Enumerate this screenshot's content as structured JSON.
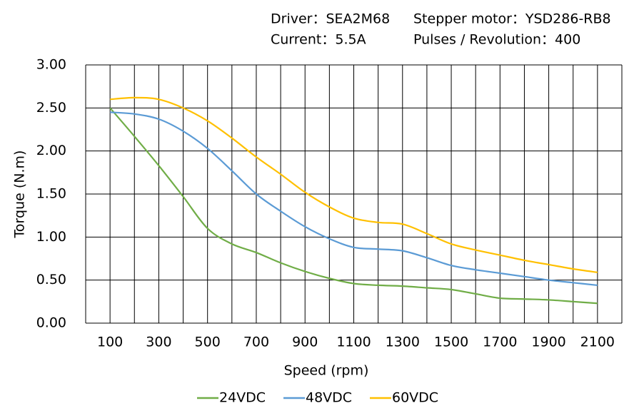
{
  "chart_data": {
    "type": "line",
    "annotations": [
      "Driver：SEA2M68",
      "Stepper motor：YSD286-RB8",
      "Current：5.5A",
      "Pulses / Revolution：400"
    ],
    "x_label": "Speed  (rpm)",
    "y_label": "Torque (N.m)",
    "x": [
      100,
      200,
      300,
      400,
      500,
      600,
      700,
      800,
      900,
      1000,
      1100,
      1200,
      1300,
      1400,
      1500,
      1600,
      1700,
      1800,
      1900,
      2000,
      2100
    ],
    "series": [
      {
        "name": "24VDC",
        "color": "#70ad47",
        "values": [
          2.5,
          2.17,
          1.83,
          1.47,
          1.1,
          0.92,
          0.82,
          0.7,
          0.6,
          0.52,
          0.46,
          0.44,
          0.43,
          0.41,
          0.39,
          0.34,
          0.29,
          0.28,
          0.27,
          0.25,
          0.23
        ]
      },
      {
        "name": "48VDC",
        "color": "#5b9bd5",
        "values": [
          2.45,
          2.43,
          2.37,
          2.23,
          2.03,
          1.77,
          1.5,
          1.3,
          1.12,
          0.98,
          0.88,
          0.86,
          0.84,
          0.76,
          0.67,
          0.62,
          0.58,
          0.54,
          0.5,
          0.47,
          0.44
        ]
      },
      {
        "name": "60VDC",
        "color": "#ffc000",
        "values": [
          2.6,
          2.62,
          2.6,
          2.5,
          2.35,
          2.15,
          1.93,
          1.73,
          1.52,
          1.35,
          1.22,
          1.17,
          1.15,
          1.04,
          0.92,
          0.85,
          0.79,
          0.73,
          0.68,
          0.63,
          0.59
        ]
      }
    ],
    "xlim": [
      0,
      2200
    ],
    "xticks": [
      100,
      300,
      500,
      700,
      900,
      1100,
      1300,
      1500,
      1700,
      1900,
      2100
    ],
    "xgrid": [
      0,
      100,
      200,
      300,
      400,
      500,
      600,
      700,
      800,
      900,
      1000,
      1100,
      1200,
      1300,
      1400,
      1500,
      1600,
      1700,
      1800,
      1900,
      2000,
      2100,
      2200
    ],
    "ylim": [
      0,
      3
    ],
    "yticks": [
      {
        "value": 0,
        "label": "0.00"
      },
      {
        "value": 0.5,
        "label": "0.50"
      },
      {
        "value": 1,
        "label": "1.00"
      },
      {
        "value": 1.5,
        "label": "1.50"
      },
      {
        "value": 2,
        "label": "2.00"
      },
      {
        "value": 2.5,
        "label": "2.50"
      },
      {
        "value": 3,
        "label": "3.00"
      }
    ],
    "grid": true,
    "legend": "bottom"
  }
}
